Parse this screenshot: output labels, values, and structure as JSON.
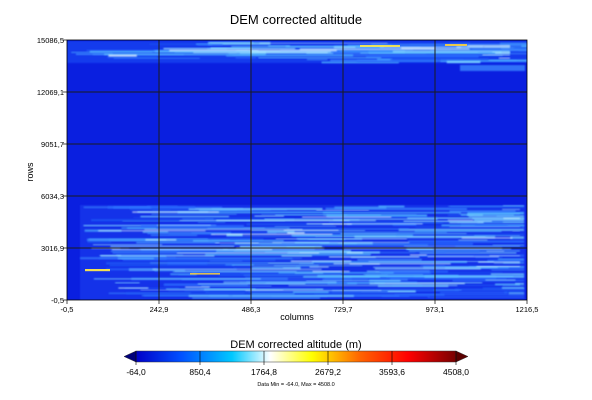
{
  "chart_data": {
    "type": "heatmap",
    "title": "DEM corrected altitude",
    "xlabel": "columns",
    "ylabel": "rows",
    "x_ticks": [
      "-0,5",
      "242,9",
      "486,3",
      "729,7",
      "973,1",
      "1216,5"
    ],
    "y_ticks": [
      "-0,5",
      "3016,9",
      "6034,3",
      "9051,7",
      "12069,1",
      "15086,5"
    ],
    "xlim": [
      -0.5,
      1216.5
    ],
    "ylim": [
      -0.5,
      15086.5
    ],
    "grid": true,
    "colorbar": {
      "title": "DEM corrected altitude (m)",
      "ticks": [
        "-64,0",
        "850,4",
        "1764,8",
        "2679,2",
        "3593,6",
        "4508,0"
      ],
      "range": [
        -64.0,
        4508.0
      ],
      "colors": [
        "#0000c8",
        "#0050ff",
        "#00c8ff",
        "#ffffff",
        "#ffff00",
        "#ff6400",
        "#ff0000",
        "#780000"
      ]
    },
    "data_min_max_text": "Data Min = -64.0, Max = 4508.0"
  }
}
